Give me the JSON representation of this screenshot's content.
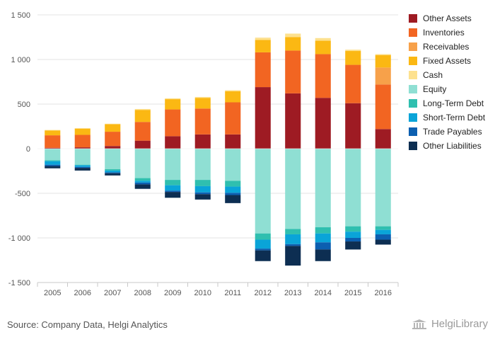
{
  "chart_data": {
    "type": "bar",
    "stacked": true,
    "categories": [
      "2005",
      "2006",
      "2007",
      "2008",
      "2009",
      "2010",
      "2011",
      "2012",
      "2013",
      "2014",
      "2015",
      "2016"
    ],
    "ylim": [
      -1500,
      1500
    ],
    "yticks": [
      1500,
      1000,
      500,
      0,
      -500,
      -1000,
      -1500
    ],
    "ytick_labels": [
      "1 500",
      "1 000",
      "500",
      "0",
      "-500",
      "-1 000",
      "-1 500"
    ],
    "grid": true,
    "legend_position": "right",
    "series": [
      {
        "name": "Other Assets",
        "color": "#9e1b23",
        "values": [
          10,
          15,
          30,
          90,
          140,
          160,
          160,
          690,
          620,
          570,
          510,
          220
        ]
      },
      {
        "name": "Inventories",
        "color": "#f26522",
        "values": [
          140,
          140,
          160,
          210,
          300,
          290,
          360,
          390,
          480,
          490,
          430,
          500
        ]
      },
      {
        "name": "Receivables",
        "color": "#f7a14a",
        "values": [
          0,
          0,
          0,
          0,
          0,
          0,
          0,
          0,
          0,
          0,
          0,
          190
        ]
      },
      {
        "name": "Fixed Assets",
        "color": "#fbb813",
        "values": [
          55,
          70,
          85,
          135,
          115,
          120,
          125,
          140,
          150,
          150,
          155,
          140
        ]
      },
      {
        "name": "Cash",
        "color": "#fde18f",
        "values": [
          5,
          5,
          5,
          10,
          10,
          10,
          10,
          25,
          40,
          30,
          15,
          10
        ]
      },
      {
        "name": "Equity",
        "color": "#8fdfd3",
        "values": [
          -130,
          -180,
          -230,
          -330,
          -350,
          -350,
          -360,
          -950,
          -900,
          -880,
          -870,
          -870
        ]
      },
      {
        "name": "Long-Term Debt",
        "color": "#2fbfaf",
        "values": [
          -10,
          -5,
          -15,
          -30,
          -60,
          -70,
          -65,
          -70,
          -60,
          -70,
          -60,
          -40
        ]
      },
      {
        "name": "Short-Term Debt",
        "color": "#0aa4d8",
        "values": [
          -40,
          -20,
          -20,
          -20,
          -60,
          -70,
          -70,
          -100,
          -110,
          -100,
          -70,
          -50
        ]
      },
      {
        "name": "Trade Payables",
        "color": "#0c5fb0",
        "values": [
          -15,
          -10,
          -10,
          -20,
          -15,
          -20,
          -25,
          -20,
          -20,
          -80,
          -40,
          -60
        ]
      },
      {
        "name": "Other Liabilities",
        "color": "#0d2e52",
        "values": [
          -25,
          -30,
          -25,
          -50,
          -65,
          -60,
          -90,
          -120,
          -220,
          -130,
          -90,
          -55
        ]
      }
    ]
  },
  "footer": {
    "source": "Source: Company Data, Helgi Analytics",
    "brand": "HelgiLibrary"
  }
}
